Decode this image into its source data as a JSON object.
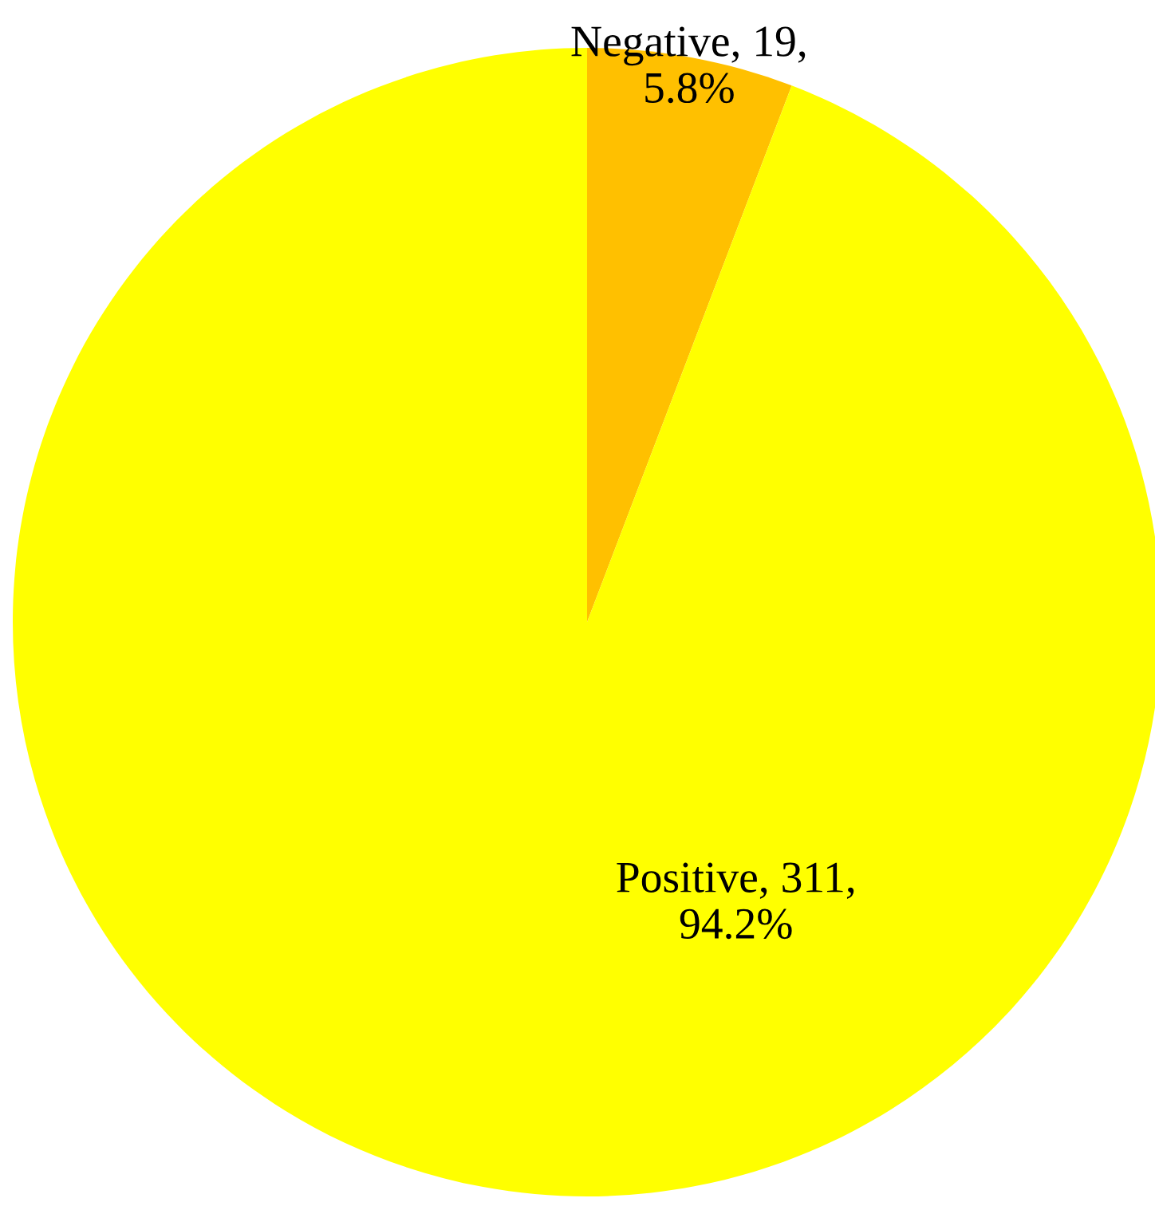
{
  "chart_data": {
    "type": "pie",
    "categories": [
      "Negative",
      "Positive"
    ],
    "values": [
      5.8,
      94.2
    ],
    "colors": [
      "#ffc000",
      "#ffff00"
    ],
    "value_labels": [
      "19,\n5.8%",
      "311,\n94.2%"
    ],
    "data_labels": true
  }
}
